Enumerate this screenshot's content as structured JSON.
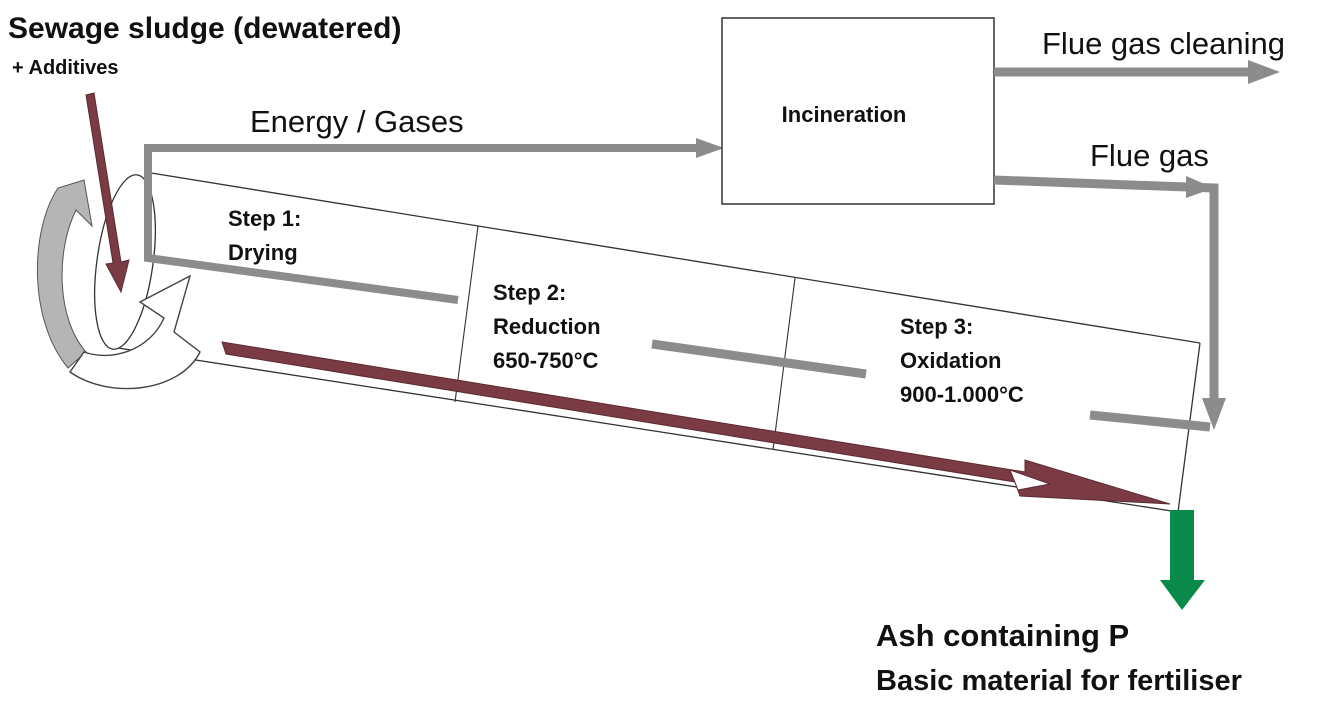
{
  "input": {
    "title": "Sewage sludge (dewatered)",
    "subtitle": "+ Additives"
  },
  "energy_label": "Energy / Gases",
  "incineration_label": "Incineration",
  "flue_gas_cleaning_label": "Flue gas cleaning",
  "flue_gas_label": "Flue gas",
  "steps": [
    {
      "line1": "Step 1:",
      "line2": "Drying",
      "line3": ""
    },
    {
      "line1": "Step 2:",
      "line2": "Reduction",
      "line3": "650-750°C"
    },
    {
      "line1": "Step 3:",
      "line2": "Oxidation",
      "line3": "900-1.000°C"
    }
  ],
  "output": {
    "line1": "Ash containing P",
    "line2": "Basic material for fertiliser"
  },
  "colors": {
    "gas_arrow": "#8c8c8c",
    "material_arrow": "#7a3b44",
    "ash_arrow": "#0a8a4a",
    "outline": "#333333",
    "rotation_arrow": "#b5b5b5"
  }
}
